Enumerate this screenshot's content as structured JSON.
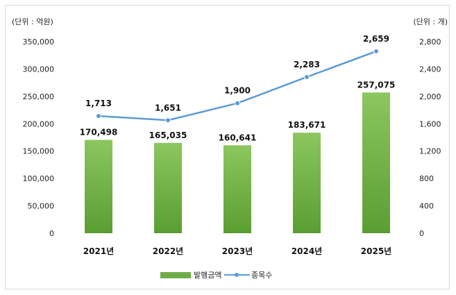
{
  "chart_data": {
    "type": "bar",
    "categories": [
      "2021년",
      "2022년",
      "2023년",
      "2024년",
      "2025년"
    ],
    "series": [
      {
        "name": "발행금액",
        "type": "bar",
        "axis": "left",
        "values": [
          170498,
          165035,
          160641,
          183671,
          257075
        ],
        "labels": [
          "170,498",
          "165,035",
          "160,641",
          "183,671",
          "257,075"
        ],
        "color": "#70ad47"
      },
      {
        "name": "종목수",
        "type": "line",
        "axis": "right",
        "values": [
          1713,
          1651,
          1900,
          2283,
          2659
        ],
        "labels": [
          "1,713",
          "1,651",
          "1,900",
          "2,283",
          "2,659"
        ],
        "color": "#5b9bd5"
      }
    ],
    "left_axis": {
      "unit_label": "(단위 : 억원)",
      "ylim": [
        0,
        350000
      ],
      "ticks": [
        0,
        50000,
        100000,
        150000,
        200000,
        250000,
        300000,
        350000
      ],
      "tick_labels": [
        "0",
        "50,000",
        "100,000",
        "150,000",
        "200,000",
        "250,000",
        "300,000",
        "350,000"
      ]
    },
    "right_axis": {
      "unit_label": "(단위 : 개)",
      "ylim": [
        0,
        2800
      ],
      "ticks": [
        0,
        400,
        800,
        1200,
        1600,
        2000,
        2400,
        2800
      ],
      "tick_labels": [
        "0",
        "400",
        "800",
        "1,200",
        "1,600",
        "2,000",
        "2,400",
        "2,800"
      ]
    },
    "grid": false,
    "legend_position": "bottom"
  }
}
